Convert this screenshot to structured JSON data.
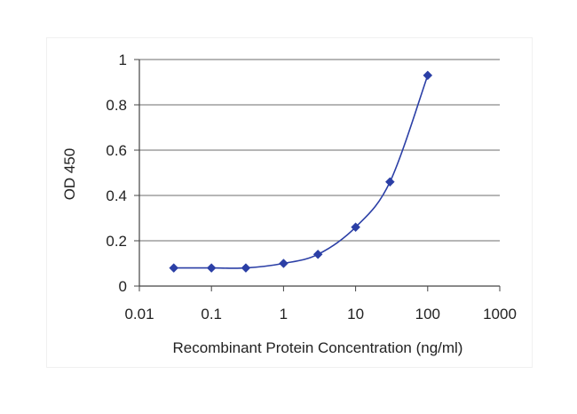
{
  "chart_data": {
    "type": "line",
    "xscale": "log",
    "xlabel": "Recombinant Protein Concentration (ng/ml)",
    "ylabel": "OD 450",
    "xlim": [
      0.01,
      1000
    ],
    "ylim": [
      0,
      1
    ],
    "x_ticks": [
      0.01,
      0.1,
      1,
      10,
      100,
      1000
    ],
    "x_tick_labels": [
      "0.01",
      "0.1",
      "1",
      "10",
      "100",
      "1000"
    ],
    "y_ticks": [
      0,
      0.2,
      0.4,
      0.6,
      0.8,
      1
    ],
    "y_tick_labels": [
      "0",
      "0.2",
      "0.4",
      "0.6",
      "0.8",
      "1"
    ],
    "grid": "horizontal",
    "series": [
      {
        "color": "#2b3fa6",
        "marker": "diamond",
        "x": [
          0.03,
          0.1,
          0.3,
          1,
          3,
          10,
          30,
          100
        ],
        "y": [
          0.08,
          0.08,
          0.08,
          0.1,
          0.14,
          0.26,
          0.46,
          0.93
        ]
      }
    ]
  }
}
